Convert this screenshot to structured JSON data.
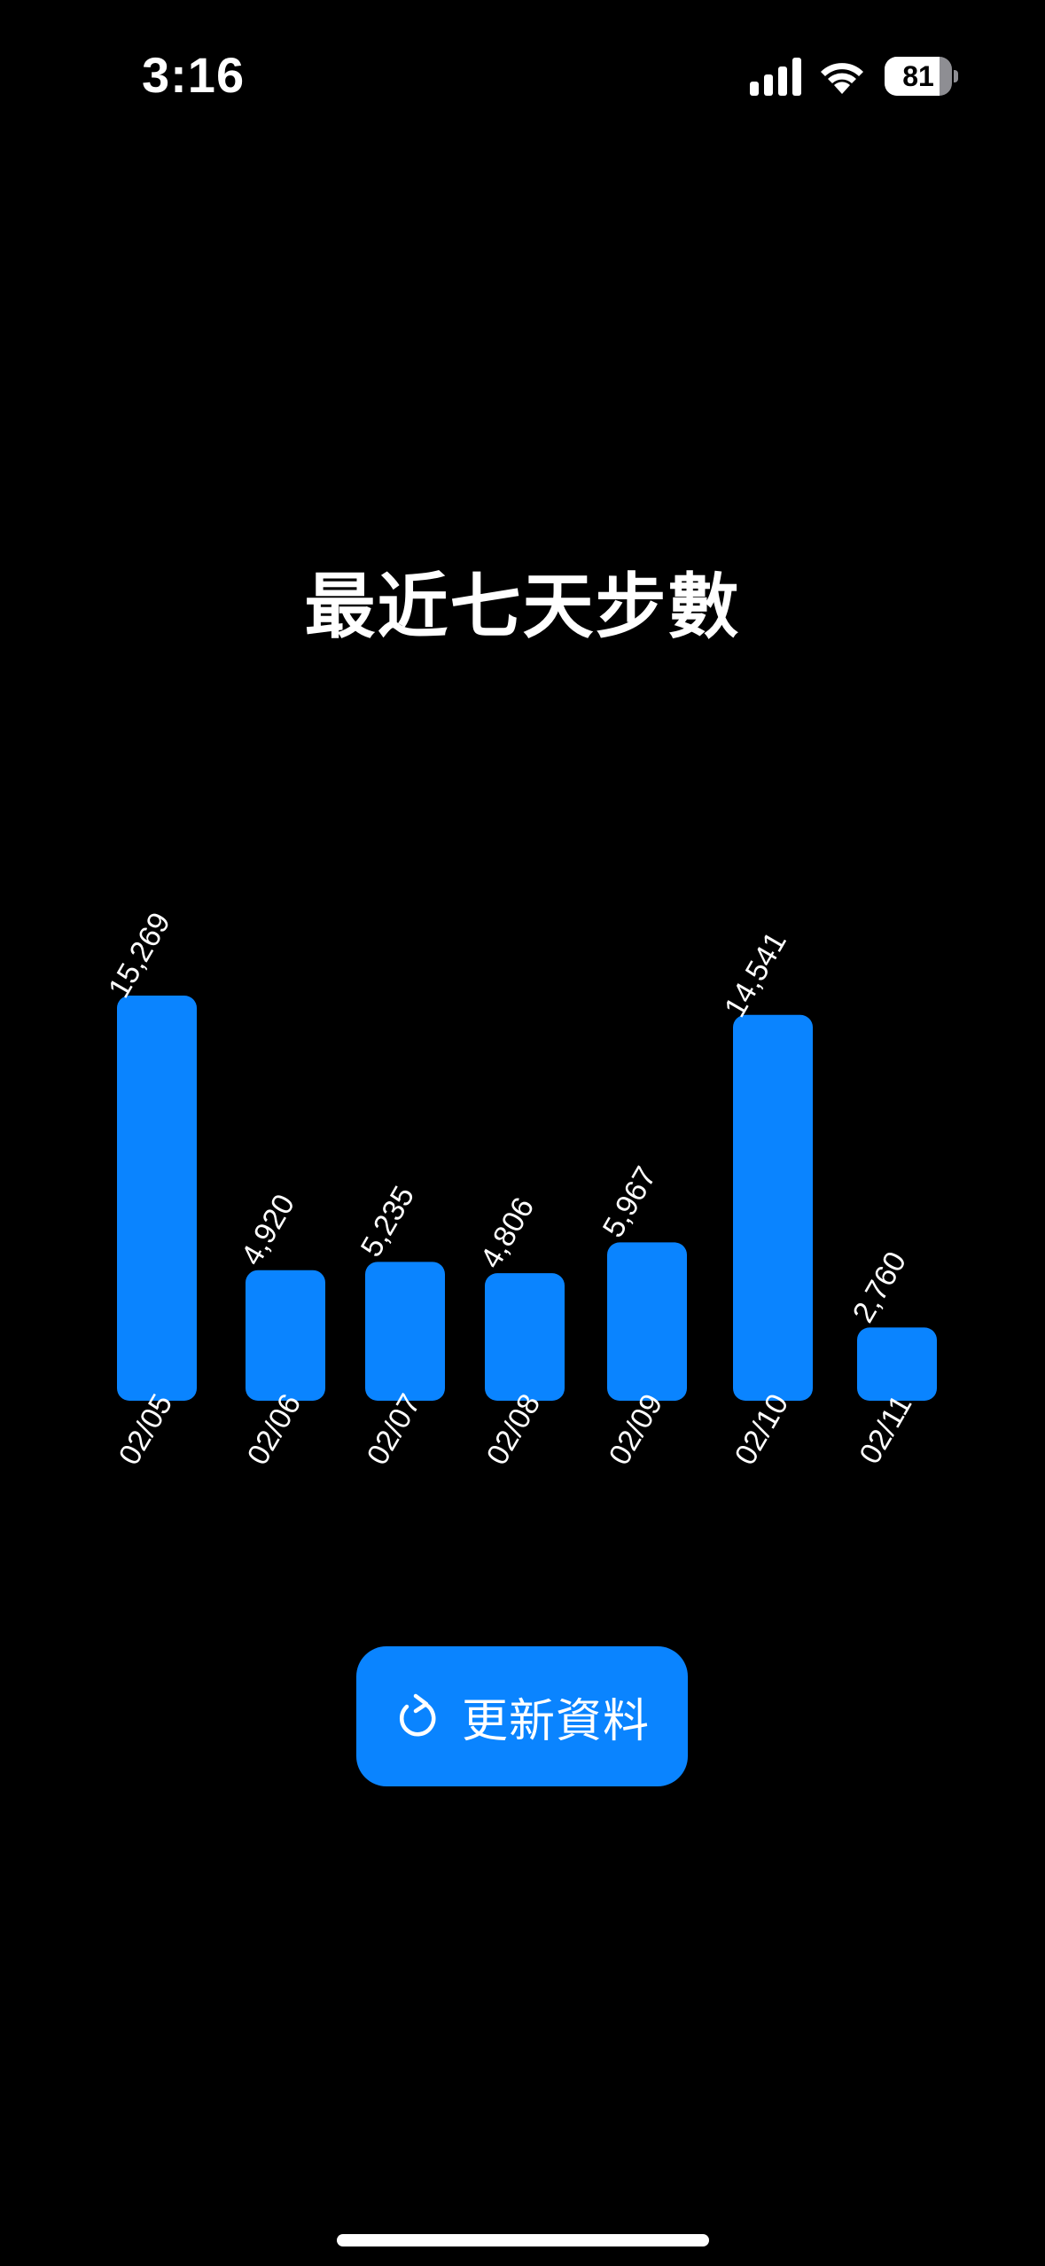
{
  "status_bar": {
    "time": "3:16",
    "battery_level": "81",
    "battery_fraction": 0.81,
    "icons": [
      "signal-icon",
      "wifi-icon",
      "battery-icon"
    ]
  },
  "title": "最近七天步數",
  "chart_data": {
    "type": "bar",
    "title": "最近七天步數",
    "categories": [
      "02/05",
      "02/06",
      "02/07",
      "02/08",
      "02/09",
      "02/10",
      "02/11"
    ],
    "values": [
      15269,
      4920,
      5235,
      4806,
      5967,
      14541,
      2760
    ],
    "value_labels": [
      "15,269",
      "4,920",
      "5,235",
      "4,806",
      "5,967",
      "14,541",
      "2,760"
    ],
    "xlabel": "",
    "ylabel": "",
    "ylim": [
      0,
      15269
    ],
    "grid": false,
    "legend": "none",
    "bar_color": "#0a84ff"
  },
  "refresh_button": {
    "label": "更新資料",
    "icon": "refresh-icon"
  },
  "colors": {
    "background": "#000000",
    "accent": "#0a84ff",
    "text": "#ffffff"
  }
}
